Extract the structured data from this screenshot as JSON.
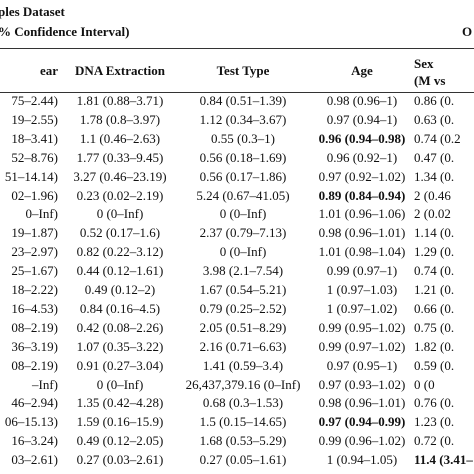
{
  "header": {
    "title": "ples Dataset",
    "subtitle": "% Confidence Interval)",
    "right": "O"
  },
  "table": {
    "columns": [
      "ear",
      "DNA Extraction",
      "Test Type",
      "Age",
      "Sex"
    ],
    "subcolumn": "(M vs",
    "rows": [
      [
        "75–2.44)",
        "1.81 (0.88–3.71)",
        "0.84 (0.51–1.39)",
        "0.98 (0.96–1)",
        "0.86 (0."
      ],
      [
        "19–2.55)",
        "1.78 (0.8–3.97)",
        "1.12 (0.34–3.67)",
        "0.97 (0.94–1)",
        "0.63 (0."
      ],
      [
        "18–3.41)",
        "1.1 (0.46–2.63)",
        "0.55 (0.3–1)",
        {
          "text": "0.96 (0.94–0.98)",
          "bold": true
        },
        "0.74 (0.2"
      ],
      [
        "52–8.76)",
        "1.77 (0.33–9.45)",
        "0.56 (0.18–1.69)",
        "0.96 (0.92–1)",
        "0.47 (0."
      ],
      [
        "51–14.14)",
        "3.27 (0.46–23.19)",
        "0.56 (0.17–1.86)",
        "0.97 (0.92–1.02)",
        "1.34 (0."
      ],
      [
        "02–1.96)",
        "0.23 (0.02–2.19)",
        "5.24 (0.67–41.05)",
        {
          "text": "0.89 (0.84–0.94)",
          "bold": true
        },
        "2 (0.46"
      ],
      [
        "0–Inf)",
        "0 (0–Inf)",
        "0 (0–Inf)",
        "1.01 (0.96–1.06)",
        "2 (0.02"
      ],
      [
        "19–1.87)",
        "0.52 (0.17–1.6)",
        "2.37 (0.79–7.13)",
        "0.98 (0.96–1.01)",
        "1.14 (0."
      ],
      [
        "23–2.97)",
        "0.82 (0.22–3.12)",
        "0 (0–Inf)",
        "1.01 (0.98–1.04)",
        "1.29 (0."
      ],
      [
        "25–1.67)",
        "0.44 (0.12–1.61)",
        "3.98 (2.1–7.54)",
        "0.99 (0.97–1)",
        "0.74 (0."
      ],
      [
        "18–2.22)",
        "0.49 (0.12–2)",
        "1.67 (0.54–5.21)",
        "1 (0.97–1.03)",
        "1.21 (0."
      ],
      [
        "16–4.53)",
        "0.84 (0.16–4.5)",
        "0.79 (0.25–2.52)",
        "1 (0.97–1.02)",
        "0.66 (0."
      ],
      [
        "08–2.19)",
        "0.42 (0.08–2.26)",
        "2.05 (0.51–8.29)",
        "0.99 (0.95–1.02)",
        "0.75 (0."
      ],
      [
        "36–3.19)",
        "1.07 (0.35–3.22)",
        "2.16 (0.71–6.63)",
        "0.99 (0.97–1.02)",
        "1.82 (0."
      ],
      [
        "08–2.19)",
        "0.91 (0.27–3.04)",
        "1.41 (0.59–3.4)",
        "0.97 (0.95–1)",
        "0.59 (0."
      ],
      [
        "–Inf)",
        "0 (0–Inf)",
        "26,437,379.16 (0–Inf)",
        "0.97 (0.93–1.02)",
        "0 (0"
      ],
      [
        "46–2.94)",
        "1.35 (0.42–4.28)",
        "0.68 (0.3–1.53)",
        "0.98 (0.96–1.01)",
        "0.76 (0."
      ],
      [
        "06–15.13)",
        "1.59 (0.16–15.9)",
        "1.5 (0.15–14.65)",
        {
          "text": "0.97 (0.94–0.99)",
          "bold": true
        },
        "1.23 (0."
      ],
      [
        "16–3.24)",
        "0.49 (0.12–2.05)",
        "1.68 (0.53–5.29)",
        "0.99 (0.96–1.02)",
        "0.72 (0."
      ],
      [
        "03–2.61)",
        "0.27 (0.03–2.61)",
        "0.27 (0.05–1.61)",
        "1 (0.94–1.05)",
        {
          "text": "11.4 (3.41–",
          "bold": true
        }
      ]
    ]
  }
}
